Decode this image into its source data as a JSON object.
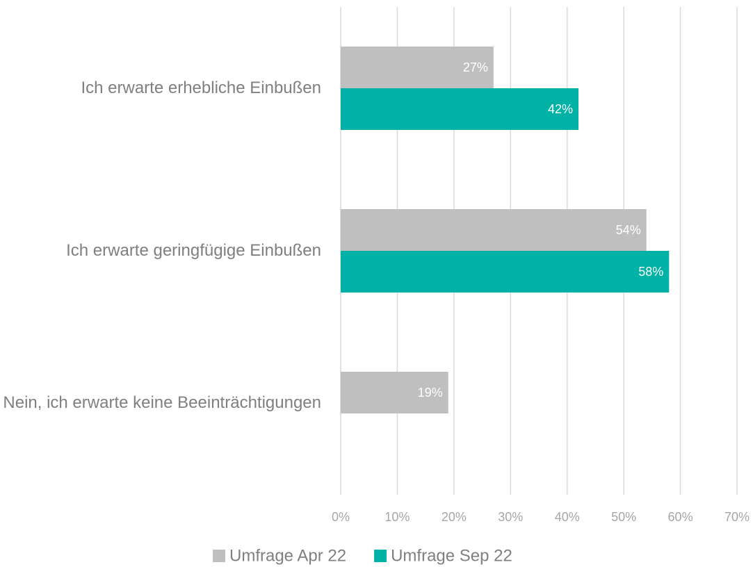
{
  "chart_data": {
    "type": "bar",
    "orientation": "horizontal",
    "categories": [
      "Ich erwarte erhebliche Einbußen",
      "Ich erwarte geringfügige Einbußen",
      "Nein, ich erwarte keine Beeinträchtigungen"
    ],
    "series": [
      {
        "name": "Umfrage Apr 22",
        "color": "#bfbfbf",
        "values": [
          27,
          54,
          19
        ],
        "value_labels": [
          "27%",
          "54%",
          "19%"
        ]
      },
      {
        "name": "Umfrage Sep 22",
        "color": "#00b2a5",
        "values": [
          42,
          58,
          null
        ],
        "value_labels": [
          "42%",
          "58%",
          null
        ]
      }
    ],
    "xlim": [
      0,
      70
    ],
    "xticks": [
      {
        "value": 0,
        "label": "0%"
      },
      {
        "value": 10,
        "label": "10%"
      },
      {
        "value": 20,
        "label": "20%"
      },
      {
        "value": 30,
        "label": "30%"
      },
      {
        "value": 40,
        "label": "40%"
      },
      {
        "value": 50,
        "label": "50%"
      },
      {
        "value": 60,
        "label": "60%"
      },
      {
        "value": 70,
        "label": "70%"
      }
    ],
    "grid": true,
    "legend": "bottom"
  }
}
